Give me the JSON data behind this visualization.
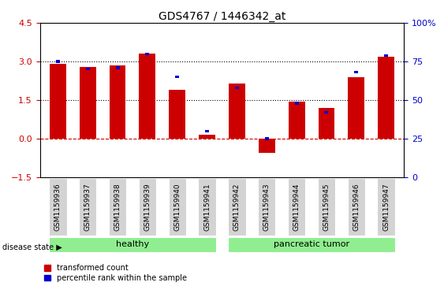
{
  "title": "GDS4767 / 1446342_at",
  "samples": [
    "GSM1159936",
    "GSM1159937",
    "GSM1159938",
    "GSM1159939",
    "GSM1159940",
    "GSM1159941",
    "GSM1159942",
    "GSM1159943",
    "GSM1159944",
    "GSM1159945",
    "GSM1159946",
    "GSM1159947"
  ],
  "transformed_counts": [
    2.9,
    2.8,
    2.85,
    3.3,
    1.9,
    0.15,
    2.15,
    -0.55,
    1.45,
    1.2,
    2.4,
    3.2
  ],
  "percentile_ranks": [
    75,
    70,
    71,
    80,
    65,
    30,
    58,
    25,
    48,
    42,
    68,
    79
  ],
  "bar_color": "#cc0000",
  "percentile_color": "#0000cc",
  "ylim": [
    -1.5,
    4.5
  ],
  "y2lim": [
    0,
    100
  ],
  "yticks_left": [
    -1.5,
    0.0,
    1.5,
    3.0,
    4.5
  ],
  "yticks_right": [
    0,
    25,
    50,
    75,
    100
  ],
  "hlines": [
    0.0,
    1.5,
    3.0
  ],
  "hline_styles": [
    "dashed",
    "dotted",
    "dotted"
  ],
  "hline_colors": [
    "#cc0000",
    "#000000",
    "#000000"
  ],
  "group_labels": [
    "healthy",
    "pancreatic tumor"
  ],
  "group_split": 6,
  "n_samples": 12,
  "group_color": "#90ee90",
  "disease_state_label": "disease state",
  "legend_items": [
    "transformed count",
    "percentile rank within the sample"
  ],
  "legend_colors": [
    "#cc0000",
    "#0000cc"
  ],
  "bar_width": 0.55,
  "percentile_bar_width": 0.13,
  "background_color": "#ffffff",
  "plot_bg_color": "#ffffff",
  "tick_label_area_color": "#d3d3d3",
  "tick_label_fontsize": 6.5,
  "title_fontsize": 10,
  "ylabel_left_color": "#cc0000",
  "ylabel_right_color": "#0000cc"
}
